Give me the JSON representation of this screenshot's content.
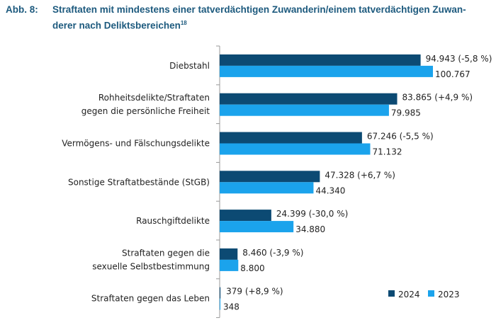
{
  "title": {
    "prefix": "Abb. 8:",
    "line1": "Straftaten mit mindestens einer tatverdächtigen Zuwanderin/einem tatverdächtigen Zuwan-",
    "line2": "derer nach Deliktsbereichen",
    "footnote": "18"
  },
  "chart_data": {
    "type": "bar",
    "orientation": "horizontal",
    "categories": [
      [
        "Diebstahl"
      ],
      [
        "Rohheitsdelikte/Straftaten",
        "gegen die persönliche Freiheit"
      ],
      [
        "Vermögens- und Fälschungsdelikte"
      ],
      [
        "Sonstige Straftatbestände (StGB)"
      ],
      [
        "Rauschgiftdelikte"
      ],
      [
        "Straftaten gegen die",
        "sexuelle Selbstbestimmung"
      ],
      [
        "Straftaten gegen das Leben"
      ]
    ],
    "series": [
      {
        "name": "2024",
        "color": "#0c4a73",
        "values": [
          94943,
          83865,
          67246,
          47328,
          24399,
          8460,
          379
        ],
        "labels": [
          "94.943 (-5,8 %)",
          "83.865 (+4,9 %)",
          "67.246 (-5,5 %)",
          "47.328 (+6,7 %)",
          "24.399 (-30,0 %)",
          "8.460 (-3,9 %)",
          "379 (+8,9 %)"
        ]
      },
      {
        "name": "2023",
        "color": "#1ba3ec",
        "values": [
          100767,
          79985,
          71132,
          44340,
          34880,
          8800,
          348
        ],
        "labels": [
          "100.767",
          "79.985",
          "71.132",
          "44.340",
          "34.880",
          "8.800",
          "348"
        ]
      }
    ],
    "xlim": [
      0,
      100767
    ],
    "grid": false,
    "legend": "bottom-right"
  }
}
